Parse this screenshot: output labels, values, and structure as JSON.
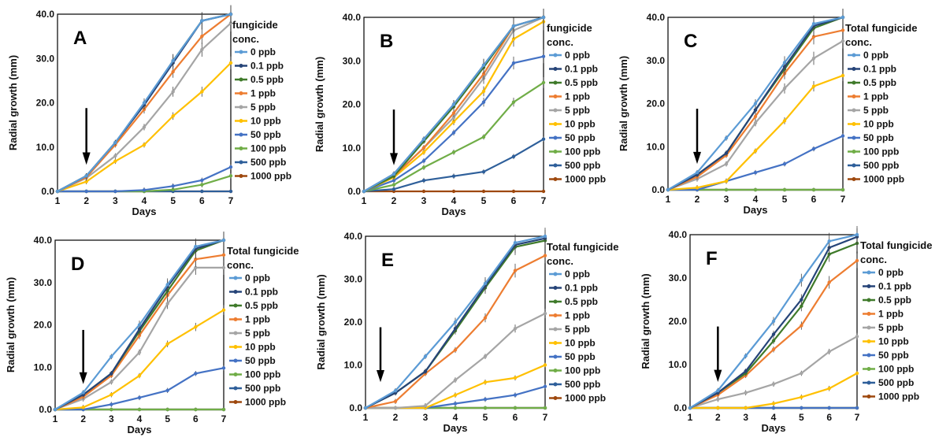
{
  "colors": {
    "0 ppb": "#5b9bd5",
    "0.1 ppb": "#264478",
    "0.5 ppb": "#3f7a2a",
    "1 ppb": "#ed7d31",
    "5 ppb": "#a5a5a5",
    "10 ppb": "#ffc000",
    "50 ppb": "#4472c4",
    "100 ppb": "#70ad47",
    "500 ppb": "#2e5f9a",
    "1000 ppb": "#9e480e"
  },
  "chart_data": [
    {
      "type": "line",
      "panel": "A",
      "xlabel": "Days",
      "ylabel": "Radial growth (mm)",
      "xlim": [
        1,
        7
      ],
      "ylim": [
        0,
        40
      ],
      "x_ticks": [
        "1",
        "2",
        "3",
        "4",
        "5",
        "6",
        "7"
      ],
      "y_ticks": [
        "0.0",
        "10.0",
        "20.0",
        "30.0",
        "40.0"
      ],
      "legend_title": [
        "fungicide",
        "conc."
      ],
      "annotation": "arrow at day 2",
      "x": [
        1,
        2,
        3,
        4,
        5,
        6,
        7
      ],
      "series": [
        {
          "name": "0 ppb",
          "values": [
            0,
            3.5,
            11,
            20,
            29.5,
            38.5,
            40
          ]
        },
        {
          "name": "0.1 ppb",
          "values": [
            0,
            3.5,
            11,
            19.5,
            29,
            38.5,
            40
          ]
        },
        {
          "name": "0.5 ppb",
          "values": [
            0,
            3.5,
            11,
            19.5,
            29.5,
            38.5,
            40
          ]
        },
        {
          "name": "1 ppb",
          "values": [
            0,
            3.2,
            10.5,
            18.5,
            27,
            35,
            40
          ]
        },
        {
          "name": "5 ppb",
          "values": [
            0,
            3,
            8,
            14.5,
            22.5,
            32,
            38
          ]
        },
        {
          "name": "10 ppb",
          "values": [
            0,
            2.2,
            6.8,
            10.5,
            17,
            22.5,
            29
          ]
        },
        {
          "name": "50 ppb",
          "values": [
            0,
            0,
            0,
            0.3,
            1.2,
            2.5,
            5.5
          ]
        },
        {
          "name": "100 ppb",
          "values": [
            0,
            0,
            0,
            0,
            0.4,
            1.5,
            3.5
          ]
        },
        {
          "name": "500 ppb",
          "values": [
            0,
            0,
            0,
            0,
            0,
            0,
            0
          ]
        },
        {
          "name": "1000 ppb",
          "values": [
            0,
            0,
            0,
            0,
            0,
            0,
            0
          ]
        }
      ]
    },
    {
      "type": "line",
      "panel": "B",
      "xlabel": "Days",
      "ylabel": "Radial growth (mm)",
      "xlim": [
        1,
        7
      ],
      "ylim": [
        0,
        40
      ],
      "x_ticks": [
        "1",
        "2",
        "3",
        "4",
        "5",
        "6",
        "7"
      ],
      "y_ticks": [
        "0.0",
        "10.0",
        "20.0",
        "30.0",
        "40.0"
      ],
      "legend_title": [
        "fungicide",
        "conc."
      ],
      "annotation": "arrow at day 2",
      "x": [
        1,
        2,
        3,
        4,
        5,
        6,
        7
      ],
      "series": [
        {
          "name": "0 ppb",
          "values": [
            0,
            4,
            12,
            20,
            29,
            38,
            40
          ]
        },
        {
          "name": "0.1 ppb",
          "values": [
            0,
            4,
            12,
            20,
            29,
            38,
            40
          ]
        },
        {
          "name": "0.5 ppb",
          "values": [
            0,
            3.5,
            11.5,
            19.5,
            28.5,
            38,
            40
          ]
        },
        {
          "name": "1 ppb",
          "values": [
            0,
            3.5,
            10,
            18,
            27,
            38,
            40
          ]
        },
        {
          "name": "5 ppb",
          "values": [
            0,
            3.5,
            10,
            17,
            26,
            37,
            40
          ]
        },
        {
          "name": "10 ppb",
          "values": [
            0,
            3.2,
            9,
            16,
            23,
            35,
            39
          ]
        },
        {
          "name": "50 ppb",
          "values": [
            0,
            2.5,
            7,
            13.5,
            20.5,
            29.5,
            31
          ]
        },
        {
          "name": "100 ppb",
          "values": [
            0,
            1.5,
            5.5,
            9,
            12.5,
            20.5,
            25
          ]
        },
        {
          "name": "500 ppb",
          "values": [
            0,
            0.5,
            2.5,
            3.5,
            4.5,
            8,
            12
          ]
        },
        {
          "name": "1000 ppb",
          "values": [
            0,
            0,
            0,
            0,
            0,
            0,
            0
          ]
        }
      ]
    },
    {
      "type": "line",
      "panel": "C",
      "xlabel": "Days",
      "ylabel": "Radial growth (mm)",
      "xlim": [
        1,
        7
      ],
      "ylim": [
        0,
        40
      ],
      "x_ticks": [
        "1",
        "2",
        "3",
        "4",
        "5",
        "6",
        "7"
      ],
      "y_ticks": [
        "0.0",
        "10.0",
        "20.0",
        "30.0",
        "40.0"
      ],
      "legend_title": [
        "Total fungicide",
        "conc."
      ],
      "annotation": "arrow at day 2",
      "x": [
        1,
        2,
        3,
        4,
        5,
        6,
        7
      ],
      "series": [
        {
          "name": "0 ppb",
          "values": [
            0,
            4,
            12,
            20,
            29.5,
            38.5,
            40
          ]
        },
        {
          "name": "0.1 ppb",
          "values": [
            0,
            3.5,
            8.5,
            18.5,
            28.5,
            38,
            40
          ]
        },
        {
          "name": "0.5 ppb",
          "values": [
            0,
            3.5,
            8.5,
            18.5,
            28,
            37.5,
            40
          ]
        },
        {
          "name": "1 ppb",
          "values": [
            0,
            3,
            8,
            17,
            27,
            35.5,
            37
          ]
        },
        {
          "name": "5 ppb",
          "values": [
            0,
            2.5,
            6,
            15.5,
            23.5,
            30.5,
            34.5
          ]
        },
        {
          "name": "10 ppb",
          "values": [
            0,
            0.5,
            2,
            9,
            16,
            24,
            26.5
          ]
        },
        {
          "name": "50 ppb",
          "values": [
            0,
            0,
            2,
            4,
            6,
            9.5,
            12.5
          ]
        },
        {
          "name": "100 ppb",
          "values": [
            0,
            0,
            0,
            0,
            0,
            0,
            0
          ]
        },
        {
          "name": "500 ppb",
          "values": [
            0,
            0,
            0,
            0,
            0,
            0,
            0
          ]
        },
        {
          "name": "1000 ppb",
          "values": [
            0,
            0,
            0,
            0,
            0,
            0,
            0
          ]
        }
      ]
    },
    {
      "type": "line",
      "panel": "D",
      "xlabel": "Days",
      "ylabel": "Radial growth (mm)",
      "xlim": [
        1,
        7
      ],
      "ylim": [
        0,
        40
      ],
      "x_ticks": [
        "1",
        "2",
        "3",
        "4",
        "5",
        "6",
        "7"
      ],
      "y_ticks": [
        "0.0",
        "10.0",
        "20.0",
        "30.0",
        "40.0"
      ],
      "legend_title": [
        "Total fungicide",
        "conc."
      ],
      "annotation": "arrow at day 2",
      "x": [
        1,
        2,
        3,
        4,
        5,
        6,
        7
      ],
      "series": [
        {
          "name": "0 ppb",
          "values": [
            0,
            4,
            12.5,
            20,
            29.5,
            38.5,
            40
          ]
        },
        {
          "name": "0.1 ppb",
          "values": [
            0,
            3.5,
            8.5,
            19,
            29,
            38,
            40
          ]
        },
        {
          "name": "0.5 ppb",
          "values": [
            0,
            3.5,
            8.5,
            18.5,
            28,
            37.5,
            40
          ]
        },
        {
          "name": "1 ppb",
          "values": [
            0,
            3,
            8,
            17.5,
            27,
            35.5,
            36.5
          ]
        },
        {
          "name": "5 ppb",
          "values": [
            0,
            2.5,
            6.5,
            13.5,
            25,
            33.5,
            33.5
          ]
        },
        {
          "name": "10 ppb",
          "values": [
            0,
            0.5,
            3.5,
            8,
            15.5,
            19.5,
            23.5
          ]
        },
        {
          "name": "50 ppb",
          "values": [
            0,
            0,
            1.2,
            2.8,
            4.5,
            8.5,
            9.8
          ]
        },
        {
          "name": "100 ppb",
          "values": [
            0,
            0,
            0,
            0,
            0,
            0,
            0
          ]
        },
        {
          "name": "500 ppb",
          "values": [
            0,
            0,
            0,
            0,
            0,
            0,
            0
          ]
        },
        {
          "name": "1000 ppb",
          "values": [
            0,
            0,
            0,
            0,
            0,
            0,
            0
          ]
        }
      ]
    },
    {
      "type": "line",
      "panel": "E",
      "xlabel": "Days",
      "ylabel": "Radial growth (mm)",
      "xlim": [
        1,
        7
      ],
      "ylim": [
        0,
        40
      ],
      "x_ticks": [
        "1",
        "2",
        "3",
        "4",
        "5",
        "6",
        "7"
      ],
      "y_ticks": [
        "0.0",
        "10.0",
        "20.0",
        "30.0",
        "40.0"
      ],
      "legend_title": [
        "Total fungicide",
        "conc."
      ],
      "annotation": "arrow at day 1.5",
      "x": [
        1,
        2,
        3,
        4,
        5,
        6,
        7
      ],
      "series": [
        {
          "name": "0 ppb",
          "values": [
            0,
            4,
            12,
            20,
            29,
            38.5,
            40
          ]
        },
        {
          "name": "0.1 ppb",
          "values": [
            0,
            3.5,
            8.5,
            18.5,
            28.5,
            38,
            39.5
          ]
        },
        {
          "name": "0.5 ppb",
          "values": [
            0,
            3.5,
            8.5,
            18,
            28,
            37.5,
            39
          ]
        },
        {
          "name": "1 ppb",
          "values": [
            0,
            1.5,
            8,
            13.5,
            21,
            32,
            35.5
          ]
        },
        {
          "name": "5 ppb",
          "values": [
            0,
            0,
            0.5,
            6.5,
            12,
            18.5,
            22
          ]
        },
        {
          "name": "10 ppb",
          "values": [
            0,
            0,
            0,
            3,
            6,
            7,
            10
          ]
        },
        {
          "name": "50 ppb",
          "values": [
            0,
            0,
            0,
            1,
            2,
            3,
            5
          ]
        },
        {
          "name": "100 ppb",
          "values": [
            0,
            0,
            0,
            0,
            0,
            0,
            0
          ]
        },
        {
          "name": "500 ppb",
          "values": [
            0,
            0,
            0,
            0,
            0,
            0,
            0
          ]
        },
        {
          "name": "1000 ppb",
          "values": [
            0,
            0,
            0,
            0,
            0,
            0,
            0
          ]
        }
      ]
    },
    {
      "type": "line",
      "panel": "F",
      "xlabel": "Days",
      "ylabel": "Radial growth (mm)",
      "xlim": [
        1,
        7
      ],
      "ylim": [
        0,
        40
      ],
      "x_ticks": [
        "1",
        "2",
        "3",
        "4",
        "5",
        "6",
        "7"
      ],
      "y_ticks": [
        "0.0",
        "10.0",
        "20.0",
        "30.0",
        "40.0"
      ],
      "legend_title": [
        "Total fungicide",
        "conc."
      ],
      "annotation": "arrow at day 2",
      "x": [
        1,
        2,
        3,
        4,
        5,
        6,
        7
      ],
      "series": [
        {
          "name": "0 ppb",
          "values": [
            0,
            4,
            12,
            20,
            29.5,
            38.5,
            40
          ]
        },
        {
          "name": "0.1 ppb",
          "values": [
            0,
            3.5,
            8.5,
            17,
            25,
            37,
            39.5
          ]
        },
        {
          "name": "0.5 ppb",
          "values": [
            0,
            3.5,
            8,
            15.5,
            23.5,
            35.5,
            38
          ]
        },
        {
          "name": "1 ppb",
          "values": [
            0,
            3,
            7.5,
            13.5,
            19,
            29,
            34
          ]
        },
        {
          "name": "5 ppb",
          "values": [
            0,
            2,
            3.5,
            5.5,
            8,
            13,
            16.5
          ]
        },
        {
          "name": "10 ppb",
          "values": [
            0,
            0,
            0,
            1,
            2.5,
            4.5,
            8
          ]
        },
        {
          "name": "50 ppb",
          "values": [
            0,
            0,
            0,
            0,
            0,
            0,
            0
          ]
        },
        {
          "name": "100 ppb",
          "values": [
            0,
            0,
            0,
            0,
            0,
            0,
            0
          ]
        },
        {
          "name": "500 ppb",
          "values": [
            0,
            0,
            0,
            0,
            0,
            0,
            0
          ]
        },
        {
          "name": "1000 ppb",
          "values": [
            0,
            0,
            0,
            0,
            0,
            0,
            0
          ]
        }
      ]
    }
  ]
}
